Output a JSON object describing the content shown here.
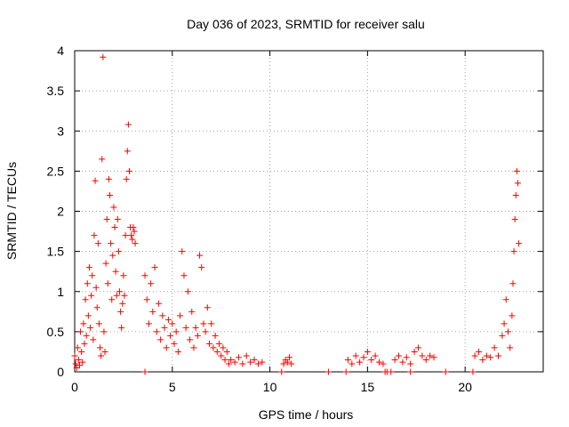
{
  "chart_data": {
    "type": "scatter",
    "title": "Day 036 of 2023, SRMTID for receiver salu",
    "xlabel": "GPS time / hours",
    "ylabel": "SRMTID / TECUs",
    "xlim": [
      0,
      24
    ],
    "ylim": [
      0,
      4
    ],
    "xticks": [
      0,
      5,
      10,
      15,
      20
    ],
    "yticks": [
      0,
      0.5,
      1,
      1.5,
      2,
      2.5,
      3,
      3.5,
      4
    ],
    "ytick_labels": [
      "0",
      "0.5",
      "1",
      "1.5",
      "2",
      "2.5",
      "3",
      "3.5",
      "4"
    ],
    "grid": true,
    "marker": "+",
    "color": "#ff0000",
    "series": [
      {
        "name": "SRMTID",
        "points": [
          [
            0.0,
            0.2
          ],
          [
            0.05,
            0.1
          ],
          [
            0.1,
            0.05
          ],
          [
            0.15,
            0.3
          ],
          [
            0.2,
            0.15
          ],
          [
            0.25,
            0.08
          ],
          [
            0.3,
            0.5
          ],
          [
            0.35,
            0.25
          ],
          [
            0.4,
            0.12
          ],
          [
            0.45,
            0.6
          ],
          [
            0.5,
            0.35
          ],
          [
            0.55,
            0.9
          ],
          [
            0.6,
            0.45
          ],
          [
            0.65,
            1.1
          ],
          [
            0.7,
            0.7
          ],
          [
            0.75,
            1.3
          ],
          [
            0.8,
            0.55
          ],
          [
            0.85,
            0.95
          ],
          [
            0.9,
            1.2
          ],
          [
            0.95,
            0.4
          ],
          [
            1.0,
            1.7
          ],
          [
            1.05,
            2.38
          ],
          [
            1.1,
            1.05
          ],
          [
            1.15,
            0.8
          ],
          [
            1.2,
            1.6
          ],
          [
            1.25,
            0.6
          ],
          [
            1.3,
            0.3
          ],
          [
            1.35,
            0.2
          ],
          [
            1.4,
            2.65
          ],
          [
            1.45,
            3.92
          ],
          [
            1.5,
            0.5
          ],
          [
            1.55,
            0.25
          ],
          [
            1.6,
            1.35
          ],
          [
            1.65,
            1.9
          ],
          [
            1.7,
            1.1
          ],
          [
            1.75,
            2.4
          ],
          [
            1.8,
            2.2
          ],
          [
            1.85,
            1.6
          ],
          [
            1.9,
            0.9
          ],
          [
            1.95,
            1.45
          ],
          [
            2.0,
            2.05
          ],
          [
            2.05,
            1.8
          ],
          [
            2.1,
            1.25
          ],
          [
            2.15,
            0.95
          ],
          [
            2.2,
            1.9
          ],
          [
            2.25,
            1.5
          ],
          [
            2.3,
            1.0
          ],
          [
            2.35,
            0.75
          ],
          [
            2.4,
            0.55
          ],
          [
            2.45,
            0.85
          ],
          [
            2.5,
            1.2
          ],
          [
            2.55,
            0.95
          ],
          [
            2.6,
            1.7
          ],
          [
            2.65,
            2.4
          ],
          [
            2.7,
            2.75
          ],
          [
            2.75,
            3.08
          ],
          [
            2.8,
            2.5
          ],
          [
            2.85,
            1.8
          ],
          [
            2.9,
            1.7
          ],
          [
            2.95,
            1.65
          ],
          [
            3.0,
            1.8
          ],
          [
            3.05,
            1.75
          ],
          [
            3.1,
            1.6
          ],
          [
            3.6,
            0.0
          ],
          [
            3.6,
            1.2
          ],
          [
            3.7,
            0.9
          ],
          [
            3.8,
            0.6
          ],
          [
            3.9,
            1.1
          ],
          [
            4.0,
            0.75
          ],
          [
            4.1,
            1.3
          ],
          [
            4.2,
            0.5
          ],
          [
            4.3,
            0.85
          ],
          [
            4.4,
            0.4
          ],
          [
            4.5,
            0.7
          ],
          [
            4.6,
            0.55
          ],
          [
            4.7,
            0.3
          ],
          [
            4.8,
            0.65
          ],
          [
            4.9,
            0.45
          ],
          [
            5.0,
            0.6
          ],
          [
            5.1,
            0.35
          ],
          [
            5.2,
            0.5
          ],
          [
            5.3,
            0.25
          ],
          [
            5.4,
            0.7
          ],
          [
            5.5,
            1.5
          ],
          [
            5.6,
            1.2
          ],
          [
            5.7,
            0.55
          ],
          [
            5.8,
            1.0
          ],
          [
            5.9,
            0.4
          ],
          [
            6.0,
            0.75
          ],
          [
            6.1,
            0.3
          ],
          [
            6.2,
            0.55
          ],
          [
            6.3,
            0.45
          ],
          [
            6.4,
            1.45
          ],
          [
            6.5,
            1.3
          ],
          [
            6.6,
            0.6
          ],
          [
            6.7,
            0.5
          ],
          [
            6.8,
            0.8
          ],
          [
            6.9,
            0.35
          ],
          [
            7.0,
            0.6
          ],
          [
            7.1,
            0.3
          ],
          [
            7.2,
            0.45
          ],
          [
            7.3,
            0.25
          ],
          [
            7.4,
            0.35
          ],
          [
            7.5,
            0.2
          ],
          [
            7.6,
            0.3
          ],
          [
            7.7,
            0.15
          ],
          [
            7.8,
            0.25
          ],
          [
            7.9,
            0.1
          ],
          [
            8.0,
            0.15
          ],
          [
            8.2,
            0.12
          ],
          [
            8.4,
            0.18
          ],
          [
            8.6,
            0.1
          ],
          [
            8.8,
            0.2
          ],
          [
            9.0,
            0.12
          ],
          [
            9.2,
            0.15
          ],
          [
            9.4,
            0.1
          ],
          [
            9.6,
            0.12
          ],
          [
            10.6,
            0.0
          ],
          [
            10.7,
            0.1
          ],
          [
            10.8,
            0.15
          ],
          [
            10.9,
            0.12
          ],
          [
            11.0,
            0.18
          ],
          [
            11.1,
            0.1
          ],
          [
            13.0,
            0.0
          ],
          [
            13.9,
            0.0
          ],
          [
            14.0,
            0.15
          ],
          [
            14.2,
            0.1
          ],
          [
            14.4,
            0.2
          ],
          [
            14.6,
            0.12
          ],
          [
            14.8,
            0.18
          ],
          [
            15.0,
            0.25
          ],
          [
            15.2,
            0.15
          ],
          [
            15.4,
            0.2
          ],
          [
            15.6,
            0.12
          ],
          [
            15.8,
            0.1
          ],
          [
            15.9,
            0.0
          ],
          [
            16.0,
            0.0
          ],
          [
            16.2,
            0.0
          ],
          [
            16.4,
            0.15
          ],
          [
            16.6,
            0.2
          ],
          [
            16.8,
            0.12
          ],
          [
            17.0,
            0.18
          ],
          [
            17.2,
            0.1
          ],
          [
            17.2,
            0.0
          ],
          [
            17.4,
            0.25
          ],
          [
            17.6,
            0.3
          ],
          [
            17.8,
            0.2
          ],
          [
            18.0,
            0.15
          ],
          [
            18.2,
            0.2
          ],
          [
            18.4,
            0.18
          ],
          [
            19.0,
            0.0
          ],
          [
            20.4,
            0.0
          ],
          [
            20.5,
            0.2
          ],
          [
            20.7,
            0.25
          ],
          [
            20.9,
            0.15
          ],
          [
            21.1,
            0.2
          ],
          [
            21.3,
            0.18
          ],
          [
            21.5,
            0.3
          ],
          [
            21.7,
            0.2
          ],
          [
            21.9,
            0.45
          ],
          [
            22.0,
            0.6
          ],
          [
            22.1,
            0.9
          ],
          [
            22.2,
            0.5
          ],
          [
            22.3,
            0.3
          ],
          [
            22.4,
            0.7
          ],
          [
            22.45,
            1.1
          ],
          [
            22.5,
            1.5
          ],
          [
            22.55,
            1.9
          ],
          [
            22.6,
            2.2
          ],
          [
            22.65,
            2.5
          ],
          [
            22.7,
            2.35
          ],
          [
            22.75,
            1.6
          ]
        ]
      }
    ]
  }
}
